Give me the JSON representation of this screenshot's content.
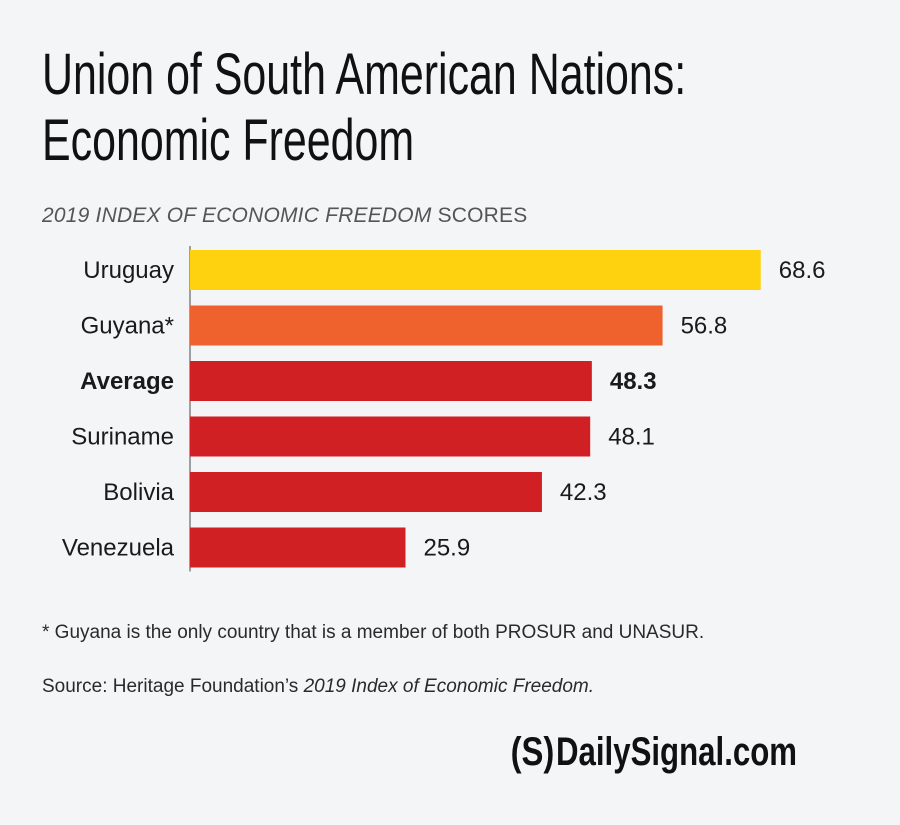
{
  "title_line1": "Union of South American Nations:",
  "title_line2": "Economic Freedom",
  "subtitle_italic": "2019 INDEX OF ECONOMIC FREEDOM",
  "subtitle_rest": " SCORES",
  "footnote": "* Guyana is the only country that is a member of both PROSUR and UNASUR.",
  "source_prefix": "Source: Heritage Foundation’s ",
  "source_italic": "2019 Index of Economic Freedom.",
  "brand_mark": "(S)",
  "brand_text": "DailySignal.com",
  "colors": {
    "uruguay": "#ffd20f",
    "guyana": "#f0622d",
    "default": "#d02024",
    "axis": "#666666"
  },
  "chart_data": {
    "type": "bar",
    "orientation": "horizontal",
    "categories": [
      "Uruguay",
      "Guyana*",
      "Average",
      "Suriname",
      "Bolivia",
      "Venezuela"
    ],
    "values": [
      68.6,
      56.8,
      48.3,
      48.1,
      42.3,
      25.9
    ],
    "value_labels": [
      "68.6",
      "56.8",
      "48.3",
      "48.1",
      "42.3",
      "25.9"
    ],
    "highlight_bold": [
      "Average"
    ],
    "bar_colors": [
      "#ffd20f",
      "#f0622d",
      "#d02024",
      "#d02024",
      "#d02024",
      "#d02024"
    ],
    "xlim": [
      0,
      100
    ],
    "grid": false,
    "legend": false
  }
}
